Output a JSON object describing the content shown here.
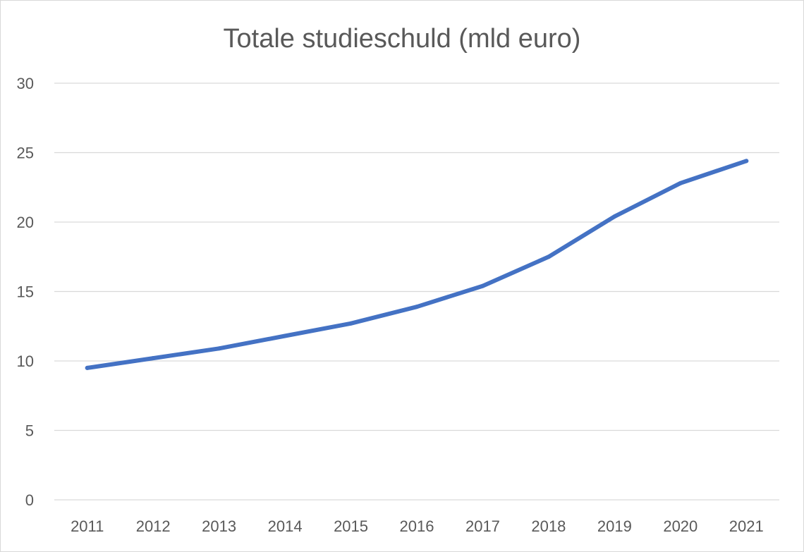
{
  "chart_data": {
    "type": "line",
    "title": "Totale studieschuld (mld euro)",
    "xlabel": "",
    "ylabel": "",
    "categories": [
      "2011",
      "2012",
      "2013",
      "2014",
      "2015",
      "2016",
      "2017",
      "2018",
      "2019",
      "2020",
      "2021"
    ],
    "series": [
      {
        "values": [
          9.5,
          10.2,
          10.9,
          11.8,
          12.7,
          13.9,
          15.4,
          17.5,
          20.4,
          22.8,
          24.4
        ],
        "color": "#4472c4"
      }
    ],
    "ylim": [
      0,
      30
    ],
    "yticks": [
      "0",
      "5",
      "10",
      "15",
      "20",
      "25",
      "30"
    ],
    "grid": true,
    "legend": "none"
  }
}
